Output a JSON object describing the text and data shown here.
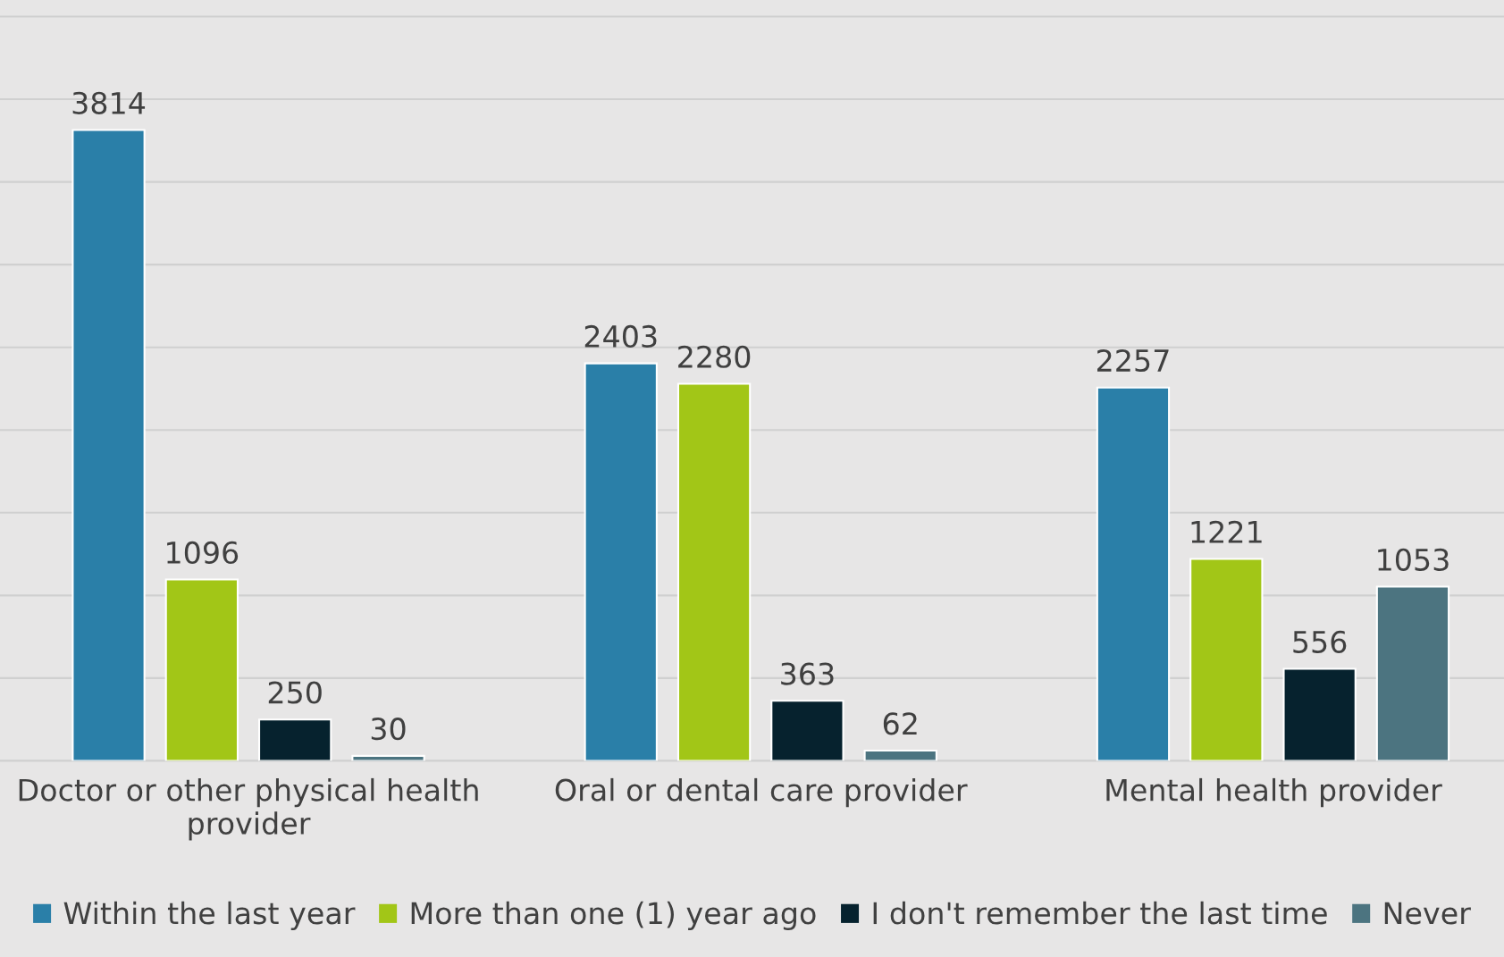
{
  "chart_data": {
    "type": "bar",
    "categories": [
      "Doctor or other physical health provider",
      "Oral or dental care provider",
      "Mental health provider"
    ],
    "series": [
      {
        "name": "Within the last year",
        "color": "#2a7fa8",
        "values": [
          3814,
          2403,
          2257
        ]
      },
      {
        "name": "More than one (1) year ago",
        "color": "#a2c617",
        "values": [
          1096,
          2280,
          1221
        ]
      },
      {
        "name": "I don't remember the last time",
        "color": "#06222e",
        "values": [
          250,
          363,
          556
        ]
      },
      {
        "name": "Never",
        "color": "#4c7480",
        "values": [
          30,
          62,
          1053
        ]
      }
    ],
    "ylim": [
      0,
      4600
    ],
    "yticks": [
      {
        "value": 0,
        "label": null
      },
      {
        "value": 500,
        "label": null
      },
      {
        "value": 1000,
        "label": null
      },
      {
        "value": 1500,
        "label": null
      },
      {
        "value": 2000,
        "label": null
      },
      {
        "value": 2500,
        "label": null
      },
      {
        "value": 3000,
        "label": null
      },
      {
        "value": 3500,
        "label": null
      },
      {
        "value": 4000,
        "label": null
      },
      {
        "value": 4500,
        "label": null
      }
    ],
    "tick_labels": "x",
    "grid": "y",
    "data_labels": true,
    "legend": "bottom"
  }
}
